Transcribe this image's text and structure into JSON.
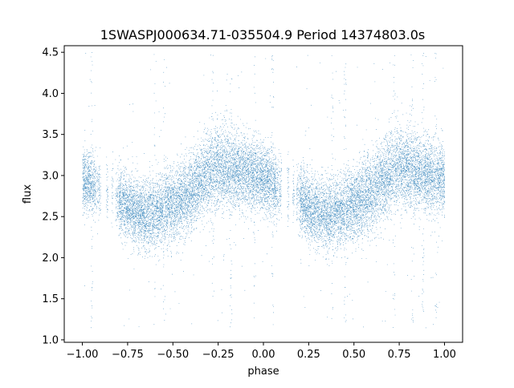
{
  "chart_data": {
    "type": "scatter",
    "title": "1SWASPJ000634.71-035504.9 Period 14374803.0s",
    "xlabel": "phase",
    "ylabel": "flux",
    "xlim": [
      -1.1,
      1.1
    ],
    "ylim": [
      0.97,
      4.58
    ],
    "xticks": [
      -1.0,
      -0.75,
      -0.5,
      -0.25,
      0.0,
      0.25,
      0.5,
      0.75,
      1.0
    ],
    "xtick_labels": [
      "−1.00",
      "−0.75",
      "−0.50",
      "−0.25",
      "0.00",
      "0.25",
      "0.50",
      "0.75",
      "1.00"
    ],
    "yticks": [
      1.0,
      1.5,
      2.0,
      2.5,
      3.0,
      3.5,
      4.0,
      4.5
    ],
    "ytick_labels": [
      "1.0",
      "1.5",
      "2.0",
      "2.5",
      "3.0",
      "3.5",
      "4.0",
      "4.5"
    ],
    "grid": false,
    "marker_color": "#1f77b4",
    "phase_range": [
      -1.0,
      1.0
    ],
    "flux_min": 1.15,
    "flux_max": 4.5,
    "n_points_approx": 20000,
    "mean_curve": {
      "x": [
        -1.0,
        -0.95,
        -0.9,
        -0.85,
        -0.8,
        -0.75,
        -0.7,
        -0.65,
        -0.6,
        -0.55,
        -0.5,
        -0.45,
        -0.4,
        -0.35,
        -0.3,
        -0.25,
        -0.2,
        -0.15,
        -0.1,
        -0.05,
        0.0,
        0.05,
        0.1,
        0.15,
        0.2,
        0.25,
        0.3,
        0.35,
        0.4,
        0.45,
        0.5,
        0.55,
        0.6,
        0.65,
        0.7,
        0.75,
        0.8,
        0.85,
        0.9,
        0.95,
        1.0
      ],
      "y": [
        2.95,
        2.9,
        2.85,
        2.8,
        2.72,
        2.62,
        2.55,
        2.52,
        2.55,
        2.6,
        2.65,
        2.72,
        2.8,
        2.92,
        3.05,
        3.12,
        3.08,
        3.05,
        3.05,
        2.98,
        2.95,
        2.9,
        2.85,
        2.8,
        2.72,
        2.62,
        2.55,
        2.52,
        2.55,
        2.6,
        2.65,
        2.72,
        2.8,
        2.92,
        3.05,
        3.12,
        3.08,
        3.05,
        3.0,
        2.98,
        2.95
      ]
    },
    "scatter_spread": {
      "x": [
        -1.0,
        -0.5,
        -0.25,
        0.0,
        0.5,
        0.75,
        1.0
      ],
      "y": [
        0.18,
        0.22,
        0.25,
        0.2,
        0.22,
        0.25,
        0.2
      ]
    },
    "sparse_phase_bins": [
      [
        -0.93,
        -0.9
      ],
      [
        -0.87,
        -0.86
      ],
      [
        -0.84,
        -0.83
      ],
      [
        -0.82,
        -0.8
      ],
      [
        0.07,
        0.1
      ],
      [
        0.13,
        0.14
      ],
      [
        0.16,
        0.17
      ],
      [
        0.18,
        0.2
      ]
    ],
    "outlier_columns": [
      -0.95,
      -0.6,
      -0.55,
      -0.28,
      -0.18,
      -0.05,
      0.05,
      0.38,
      0.45,
      0.72,
      0.82,
      0.88,
      0.95
    ]
  }
}
